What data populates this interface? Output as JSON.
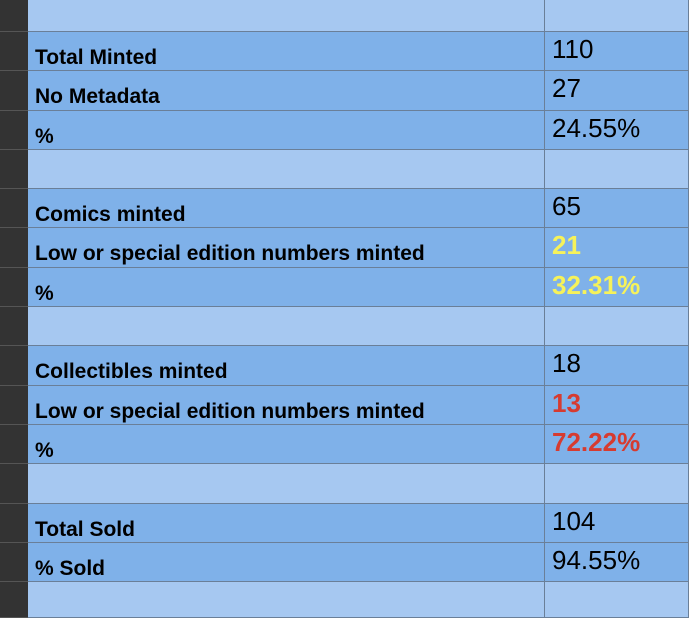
{
  "sections": [
    {
      "rows": [
        {
          "label": "Total Minted",
          "value": "110"
        },
        {
          "label": "No Metadata",
          "value": "27"
        },
        {
          "label": "%",
          "value": "24.55%"
        }
      ]
    },
    {
      "rows": [
        {
          "label": "Comics minted",
          "value": "65"
        },
        {
          "label": "Low or special edition numbers minted",
          "value": "21"
        },
        {
          "label": "%",
          "value": "32.31%"
        }
      ]
    },
    {
      "rows": [
        {
          "label": "Collectibles minted",
          "value": "18"
        },
        {
          "label": "Low or special edition numbers minted",
          "value": "13"
        },
        {
          "label": "%",
          "value": "72.22%"
        }
      ]
    },
    {
      "rows": [
        {
          "label": "Total Sold",
          "value": "104"
        },
        {
          "label": "% Sold",
          "value": "94.55%"
        }
      ]
    }
  ]
}
